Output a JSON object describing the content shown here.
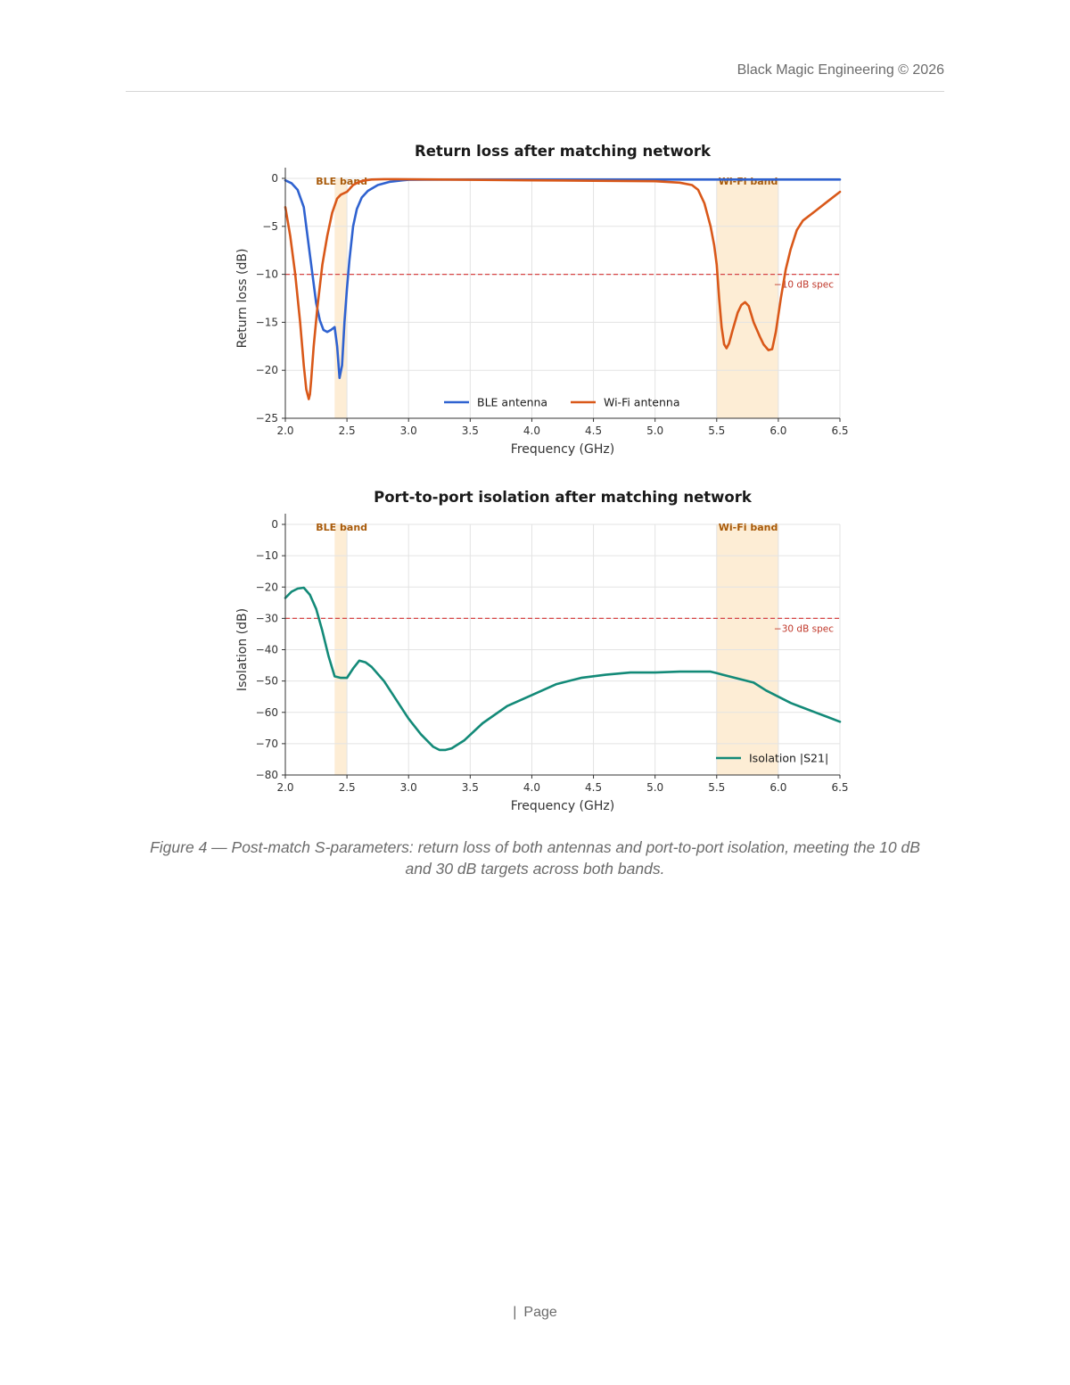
{
  "header": {
    "text": "Black Magic Engineering  © 2026"
  },
  "chart_data": [
    {
      "type": "line",
      "title": "Return loss after matching network",
      "xlabel": "Frequency (GHz)",
      "ylabel": "Return loss (dB)",
      "xlim": [
        2.0,
        6.5
      ],
      "ylim": [
        -25,
        0
      ],
      "xticks": [
        "2.0",
        "2.5",
        "3.0",
        "3.5",
        "4.0",
        "4.5",
        "5.0",
        "5.5",
        "6.0",
        "6.5"
      ],
      "yticks": [
        "0",
        "−5",
        "−10",
        "−15",
        "−20",
        "−25"
      ],
      "grid": true,
      "legend_position": "lower center",
      "bands": [
        {
          "label": "BLE band",
          "x0": 2.4,
          "x1": 2.5
        },
        {
          "label": "Wi-Fi band",
          "x0": 5.5,
          "x1": 6.0
        }
      ],
      "reference_line": {
        "y": -10,
        "label": "−10 dB spec"
      },
      "series": [
        {
          "name": "BLE antenna",
          "color": "#2f62d0",
          "x": [
            2.0,
            2.05,
            2.1,
            2.15,
            2.2,
            2.25,
            2.28,
            2.31,
            2.34,
            2.37,
            2.4,
            2.42,
            2.44,
            2.46,
            2.48,
            2.5,
            2.52,
            2.55,
            2.58,
            2.62,
            2.67,
            2.75,
            2.85,
            2.95,
            3.0,
            3.5,
            4.0,
            4.5,
            5.0,
            5.5,
            6.0,
            6.5
          ],
          "y": [
            -0.2,
            -0.5,
            -1.2,
            -3.0,
            -8.0,
            -13.0,
            -14.8,
            -15.8,
            -16.0,
            -15.8,
            -15.5,
            -17.5,
            -20.8,
            -19.5,
            -15.0,
            -11.5,
            -8.5,
            -5.0,
            -3.2,
            -2.0,
            -1.3,
            -0.7,
            -0.35,
            -0.2,
            -0.15,
            -0.12,
            -0.12,
            -0.12,
            -0.12,
            -0.12,
            -0.12,
            -0.12
          ]
        },
        {
          "name": "Wi-Fi antenna",
          "color": "#d95819",
          "x": [
            2.0,
            2.04,
            2.08,
            2.12,
            2.15,
            2.17,
            2.19,
            2.2,
            2.21,
            2.23,
            2.26,
            2.3,
            2.34,
            2.38,
            2.42,
            2.45,
            2.5,
            2.55,
            2.6,
            2.65,
            2.7,
            2.8,
            2.9,
            3.0,
            3.5,
            4.0,
            4.5,
            5.0,
            5.2,
            5.3,
            5.35,
            5.4,
            5.45,
            5.48,
            5.5,
            5.52,
            5.54,
            5.56,
            5.58,
            5.6,
            5.63,
            5.67,
            5.7,
            5.73,
            5.76,
            5.8,
            5.85,
            5.88,
            5.92,
            5.95,
            5.98,
            6.02,
            6.06,
            6.1,
            6.15,
            6.2,
            6.3,
            6.4,
            6.5
          ],
          "y": [
            -3.0,
            -6.0,
            -10.0,
            -15.0,
            -19.5,
            -22.0,
            -23.0,
            -22.5,
            -21.0,
            -17.5,
            -13.5,
            -9.0,
            -6.0,
            -3.6,
            -2.1,
            -1.7,
            -1.4,
            -0.7,
            -0.35,
            -0.2,
            -0.12,
            -0.08,
            -0.08,
            -0.1,
            -0.15,
            -0.2,
            -0.25,
            -0.3,
            -0.45,
            -0.7,
            -1.2,
            -2.6,
            -5.0,
            -7.0,
            -9.0,
            -12.5,
            -15.5,
            -17.3,
            -17.7,
            -17.2,
            -15.8,
            -14.0,
            -13.2,
            -12.9,
            -13.3,
            -15.0,
            -16.5,
            -17.3,
            -17.9,
            -17.8,
            -16.0,
            -12.5,
            -9.5,
            -7.4,
            -5.4,
            -4.4,
            -3.4,
            -2.4,
            -1.4
          ]
        }
      ]
    },
    {
      "type": "line",
      "title": "Port-to-port isolation after matching network",
      "xlabel": "Frequency (GHz)",
      "ylabel": "Isolation (dB)",
      "xlim": [
        2.0,
        6.5
      ],
      "ylim": [
        -80,
        0
      ],
      "xticks": [
        "2.0",
        "2.5",
        "3.0",
        "3.5",
        "4.0",
        "4.5",
        "5.0",
        "5.5",
        "6.0",
        "6.5"
      ],
      "yticks": [
        "0",
        "−10",
        "−20",
        "−30",
        "−40",
        "−50",
        "−60",
        "−70",
        "−80"
      ],
      "grid": true,
      "legend_position": "lower right",
      "bands": [
        {
          "label": "BLE band",
          "x0": 2.4,
          "x1": 2.5
        },
        {
          "label": "Wi-Fi band",
          "x0": 5.5,
          "x1": 6.0
        }
      ],
      "reference_line": {
        "y": -30,
        "label": "−30 dB spec"
      },
      "series": [
        {
          "name": "Isolation |S21|",
          "color": "#138a78",
          "x": [
            2.0,
            2.05,
            2.1,
            2.15,
            2.2,
            2.25,
            2.3,
            2.35,
            2.4,
            2.45,
            2.5,
            2.55,
            2.6,
            2.65,
            2.7,
            2.8,
            2.9,
            3.0,
            3.1,
            3.2,
            3.25,
            3.3,
            3.35,
            3.45,
            3.6,
            3.8,
            4.0,
            4.2,
            4.4,
            4.6,
            4.8,
            5.0,
            5.2,
            5.4,
            5.45,
            5.5,
            5.55,
            5.6,
            5.7,
            5.8,
            5.9,
            6.0,
            6.1,
            6.2,
            6.3,
            6.4,
            6.5
          ],
          "y": [
            -23.5,
            -21.5,
            -20.5,
            -20.2,
            -22.5,
            -27.0,
            -34.0,
            -42.0,
            -48.5,
            -49.0,
            -49.0,
            -46.0,
            -43.5,
            -44.0,
            -45.5,
            -50.0,
            -56.0,
            -62.0,
            -67.0,
            -71.0,
            -72.0,
            -72.0,
            -71.5,
            -69.0,
            -63.5,
            -58.0,
            -54.5,
            -51.0,
            -49.0,
            -48.0,
            -47.3,
            -47.3,
            -47.0,
            -47.0,
            -47.0,
            -47.5,
            -48.0,
            -48.5,
            -49.5,
            -50.5,
            -53.0,
            -55.0,
            -57.0,
            -58.5,
            -60.0,
            -61.5,
            -63.0
          ]
        }
      ]
    }
  ],
  "caption": {
    "line1": "Figure 4 — Post-match S-parameters: return loss of both antennas and port-to-port isolation, meeting the 10 dB",
    "line2": "and 30 dB targets across both bands."
  },
  "footer": {
    "separator": "|",
    "text": "Page"
  }
}
